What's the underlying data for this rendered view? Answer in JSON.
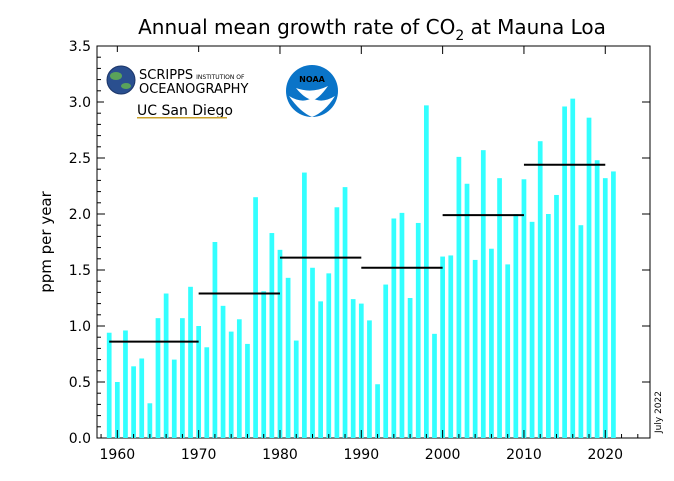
{
  "chart_data": {
    "type": "bar",
    "title": "Annual mean growth rate of CO",
    "title_subscript": "2",
    "title_suffix": " at Mauna Loa",
    "xlabel": "",
    "ylabel": "ppm per year",
    "ylim": [
      0,
      3.5
    ],
    "xlim": [
      1957.5,
      2025.5
    ],
    "yticks": [
      "0.0",
      "0.5",
      "1.0",
      "1.5",
      "2.0",
      "2.5",
      "3.0",
      "3.5"
    ],
    "xticks": [
      "1960",
      "1970",
      "1980",
      "1990",
      "2000",
      "2010",
      "2020"
    ],
    "bar_color": "#33ffff",
    "decade_line_color": "#000000",
    "grid": false,
    "x": [
      1959,
      1960,
      1961,
      1962,
      1963,
      1964,
      1965,
      1966,
      1967,
      1968,
      1969,
      1970,
      1971,
      1972,
      1973,
      1974,
      1975,
      1976,
      1977,
      1978,
      1979,
      1980,
      1981,
      1982,
      1983,
      1984,
      1985,
      1986,
      1987,
      1988,
      1989,
      1990,
      1991,
      1992,
      1993,
      1994,
      1995,
      1996,
      1997,
      1998,
      1999,
      2000,
      2001,
      2002,
      2003,
      2004,
      2005,
      2006,
      2007,
      2008,
      2009,
      2010,
      2011,
      2012,
      2013,
      2014,
      2015,
      2016,
      2017,
      2018,
      2019,
      2020,
      2021
    ],
    "values": [
      0.94,
      0.5,
      0.96,
      0.64,
      0.71,
      0.31,
      1.07,
      1.29,
      0.7,
      1.07,
      1.35,
      1.0,
      0.81,
      1.75,
      1.18,
      0.95,
      1.06,
      0.84,
      2.15,
      1.31,
      1.83,
      1.68,
      1.43,
      0.87,
      2.37,
      1.52,
      1.22,
      1.47,
      2.06,
      2.24,
      1.24,
      1.2,
      1.05,
      0.48,
      1.37,
      1.96,
      2.01,
      1.25,
      1.92,
      2.97,
      0.93,
      1.62,
      1.63,
      2.51,
      2.27,
      1.59,
      2.57,
      1.69,
      2.32,
      1.55,
      2.0,
      2.31,
      1.93,
      2.65,
      2.0,
      2.17,
      2.96,
      3.03,
      1.9,
      2.86,
      2.48,
      2.32,
      2.38
    ],
    "decadal_means": [
      {
        "start": 1959,
        "end": 1970,
        "value": 0.86
      },
      {
        "start": 1970,
        "end": 1980,
        "value": 1.29
      },
      {
        "start": 1980,
        "end": 1990,
        "value": 1.61
      },
      {
        "start": 1990,
        "end": 2000,
        "value": 1.52
      },
      {
        "start": 2000,
        "end": 2010,
        "value": 1.99
      },
      {
        "start": 2010,
        "end": 2020,
        "value": 2.44
      }
    ],
    "annotation": "July 2022"
  },
  "logos": {
    "scripps_line1": "SCRIPPS",
    "scripps_line1_small": "INSTITUTION OF",
    "scripps_line2": "OCEANOGRAPHY",
    "ucsd": "UC San Diego",
    "noaa": "NOAA"
  }
}
